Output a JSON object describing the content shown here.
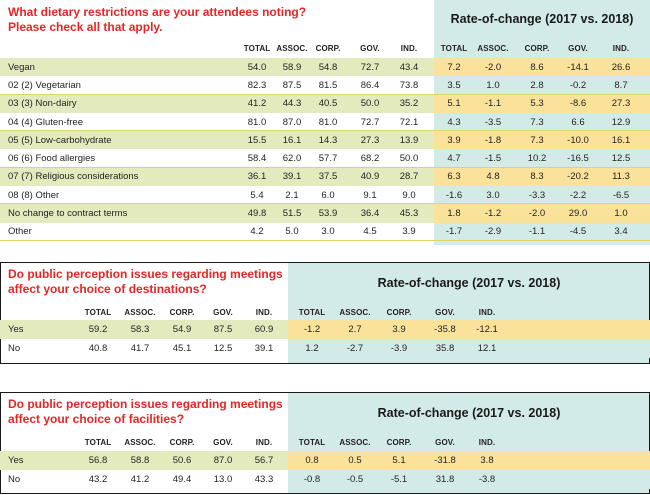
{
  "colors": {
    "title_red": "#e32726",
    "rate_panel": "#d3ebe8",
    "row_green": "#e3eabe",
    "row_yellow": "#fae29a"
  },
  "table1": {
    "title_line1": "What dietary restrictions are your attendees noting?",
    "title_line2": "Please check all that apply.",
    "rate_title": "Rate-of-change (2017 vs. 2018)",
    "headers": [
      "TOTAL",
      "ASSOC.",
      "CORP.",
      "GOV.",
      "IND."
    ],
    "rate_headers": [
      "TOTAL",
      "ASSOC.",
      "CORP.",
      "GOV.",
      "IND."
    ],
    "rows": [
      {
        "label": "Vegan",
        "values": [
          "54.0",
          "58.9",
          "54.8",
          "72.7",
          "43.4"
        ],
        "rates": [
          "7.2",
          "-2.0",
          "8.6",
          "-14.1",
          "26.6"
        ]
      },
      {
        "label": "02 (2) Vegetarian",
        "values": [
          "82.3",
          "87.5",
          "81.5",
          "86.4",
          "73.8"
        ],
        "rates": [
          "3.5",
          "1.0",
          "2.8",
          "-0.2",
          "8.7"
        ]
      },
      {
        "label": "03 (3) Non-dairy",
        "values": [
          "41.2",
          "44.3",
          "40.5",
          "50.0",
          "35.2"
        ],
        "rates": [
          "5.1",
          "-1.1",
          "5.3",
          "-8.6",
          "27.3"
        ]
      },
      {
        "label": "04 (4) Gluten-free",
        "values": [
          "81.0",
          "87.0",
          "81.0",
          "72.7",
          "72.1"
        ],
        "rates": [
          "4.3",
          "-3.5",
          "7.3",
          "6.6",
          "12.9"
        ]
      },
      {
        "label": "05 (5) Low-carbohydrate",
        "values": [
          "15.5",
          "16.1",
          "14.3",
          "27.3",
          "13.9"
        ],
        "rates": [
          "3.9",
          "-1.8",
          "7.3",
          "-10.0",
          "16.1"
        ]
      },
      {
        "label": "06 (6) Food allergies",
        "values": [
          "58.4",
          "62.0",
          "57.7",
          "68.2",
          "50.0"
        ],
        "rates": [
          "4.7",
          "-1.5",
          "10.2",
          "-16.5",
          "12.5"
        ]
      },
      {
        "label": "07 (7) Religious considerations",
        "values": [
          "36.1",
          "39.1",
          "37.5",
          "40.9",
          "28.7"
        ],
        "rates": [
          "6.3",
          "4.8",
          "8.3",
          "-20.2",
          "11.3"
        ]
      },
      {
        "label": "08 (8) Other",
        "values": [
          "5.4",
          "2.1",
          "6.0",
          "9.1",
          "9.0"
        ],
        "rates": [
          "-1.6",
          "3.0",
          "-3.3",
          "-2.2",
          "-6.5"
        ]
      },
      {
        "label": "No change to contract terms",
        "values": [
          "49.8",
          "51.5",
          "53.9",
          "36.4",
          "45.3"
        ],
        "rates": [
          "1.8",
          "-1.2",
          "-2.0",
          "29.0",
          "1.0"
        ]
      },
      {
        "label": "Other",
        "values": [
          "4.2",
          "5.0",
          "3.0",
          "4.5",
          "3.9"
        ],
        "rates": [
          "-1.7",
          "-2.9",
          "-1.1",
          "-4.5",
          "3.4"
        ]
      }
    ]
  },
  "table2": {
    "title_line1": "Do public perception issues regarding meetings",
    "title_line2": "affect your choice of destinations?",
    "rate_title": "Rate-of-change (2017 vs. 2018)",
    "headers": [
      "TOTAL",
      "ASSOC.",
      "CORP.",
      "GOV.",
      "IND."
    ],
    "rate_headers": [
      "TOTAL",
      "ASSOC.",
      "CORP.",
      "GOV.",
      "IND."
    ],
    "rows": [
      {
        "label": "Yes",
        "values": [
          "59.2",
          "58.3",
          "54.9",
          "87.5",
          "60.9"
        ],
        "rates": [
          "-1.2",
          "2.7",
          "3.9",
          "-35.8",
          "-12.1"
        ]
      },
      {
        "label": "No",
        "values": [
          "40.8",
          "41.7",
          "45.1",
          "12.5",
          "39.1"
        ],
        "rates": [
          "1.2",
          "-2.7",
          "-3.9",
          "35.8",
          "12.1"
        ]
      }
    ]
  },
  "table3": {
    "title_line1": "Do public perception issues regarding meetings",
    "title_line2": "affect your choice of facilities?",
    "rate_title": "Rate-of-change (2017 vs. 2018)",
    "headers": [
      "TOTAL",
      "ASSOC.",
      "CORP.",
      "GOV.",
      "IND."
    ],
    "rate_headers": [
      "TOTAL",
      "ASSOC.",
      "CORP.",
      "GOV.",
      "IND."
    ],
    "rows": [
      {
        "label": "Yes",
        "values": [
          "56.8",
          "58.8",
          "50.6",
          "87.0",
          "56.7"
        ],
        "rates": [
          "0.8",
          "0.5",
          "5.1",
          "-31.8",
          "3.8"
        ]
      },
      {
        "label": "No",
        "values": [
          "43.2",
          "41.2",
          "49.4",
          "13.0",
          "43.3"
        ],
        "rates": [
          "-0.8",
          "-0.5",
          "-5.1",
          "31.8",
          "-3.8"
        ]
      }
    ]
  }
}
